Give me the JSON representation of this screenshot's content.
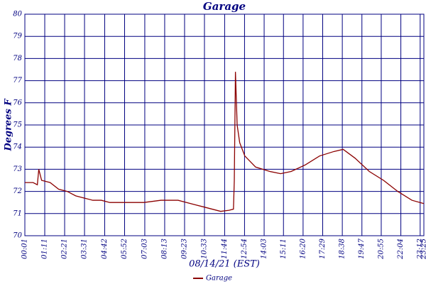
{
  "chart_data": {
    "type": "line",
    "title": "Garage",
    "y_label": "Degrees F",
    "x_label": "08/14/21 (EST)",
    "xlim": [
      "00:01",
      "23:25"
    ],
    "xticks": [
      "00:01",
      "01:11",
      "02:21",
      "03:31",
      "04:42",
      "05:52",
      "07:03",
      "08:13",
      "09:23",
      "10:33",
      "11:44",
      "12:54",
      "14:03",
      "15:11",
      "16:20",
      "17:29",
      "18:38",
      "19:47",
      "20:55",
      "22:04",
      "23:12",
      "23:25"
    ],
    "ylim": [
      70,
      80
    ],
    "yticks": [
      70,
      71,
      72,
      73,
      74,
      75,
      76,
      77,
      78,
      79,
      80
    ],
    "grid": true,
    "x": [
      "00:01",
      "00:30",
      "00:45",
      "00:50",
      "01:00",
      "01:30",
      "02:00",
      "02:30",
      "03:00",
      "03:30",
      "04:00",
      "04:30",
      "05:00",
      "06:00",
      "07:00",
      "08:00",
      "09:00",
      "10:00",
      "10:30",
      "11:00",
      "11:30",
      "12:00",
      "12:15",
      "12:18",
      "12:22",
      "12:28",
      "12:37",
      "12:55",
      "13:33",
      "14:23",
      "15:01",
      "15:38",
      "16:28",
      "17:18",
      "18:08",
      "18:41",
      "19:23",
      "20:13",
      "21:03",
      "21:53",
      "22:43",
      "23:25"
    ],
    "series": [
      {
        "name": "Garage",
        "color": "#8b0000",
        "values": [
          72.4,
          72.4,
          72.3,
          73.0,
          72.5,
          72.4,
          72.1,
          72.0,
          71.8,
          71.7,
          71.6,
          71.6,
          71.5,
          71.5,
          71.5,
          71.6,
          71.6,
          71.4,
          71.3,
          71.2,
          71.1,
          71.15,
          71.2,
          72.5,
          77.4,
          75.0,
          74.2,
          73.6,
          73.1,
          72.9,
          72.8,
          72.9,
          73.2,
          73.6,
          73.8,
          73.9,
          73.5,
          72.9,
          72.5,
          72.0,
          71.6,
          71.45
        ]
      }
    ]
  }
}
